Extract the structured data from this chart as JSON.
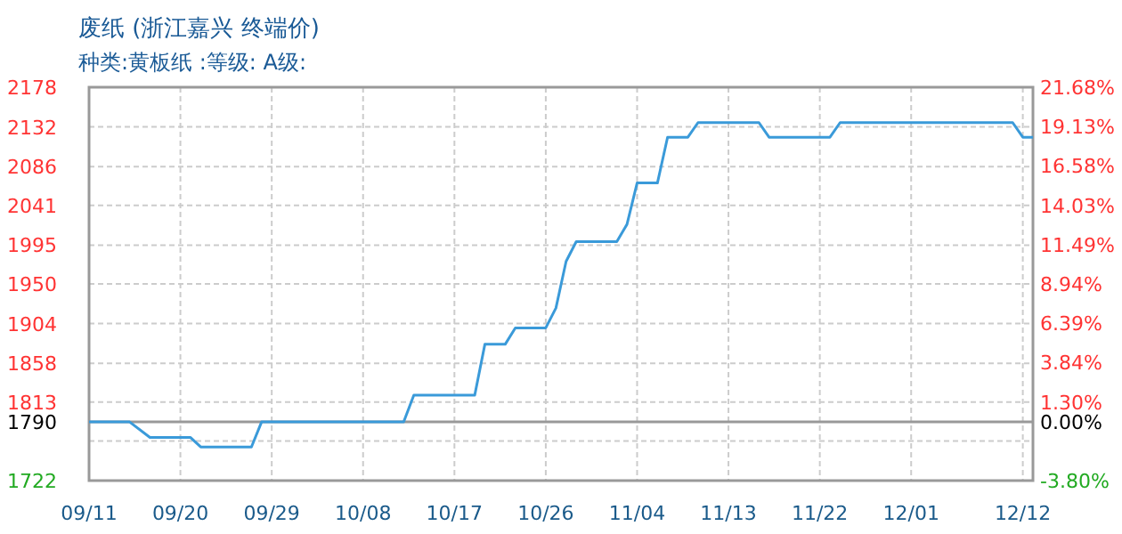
{
  "chart_data": {
    "type": "line",
    "title": "废纸 (浙江嘉兴 终端价)",
    "subtitle": "种类:黄板纸 :等级: A级:",
    "color": "#3a9ad9",
    "grid": true,
    "x": [
      "--09-11",
      "--09-15",
      "--09-17",
      "--09-21",
      "--09-22",
      "--09-27",
      "--09-28",
      "--10-12",
      "--10-13",
      "--10-19",
      "--10-20",
      "--10-22",
      "--10-23",
      "--10-26",
      "--10-27",
      "--10-28",
      "--10-29",
      "--11-02",
      "--11-03",
      "--11-04",
      "--11-06",
      "--11-07",
      "--11-09",
      "--11-10",
      "--11-16",
      "--11-17",
      "--11-23",
      "--11-24",
      "--12-11",
      "--12-12",
      "--12-13"
    ],
    "values": [
      1790,
      1790,
      1772,
      1772,
      1761,
      1761,
      1790,
      1790,
      1821,
      1821,
      1880,
      1880,
      1899,
      1899,
      1922,
      1976,
      1999,
      1999,
      2019,
      2067,
      2067,
      2120,
      2120,
      2137,
      2137,
      2120,
      2120,
      2137,
      2137,
      2120,
      2120
    ],
    "xlim": [
      "--09-11",
      "--12-13"
    ],
    "xticks": [
      {
        "value": "--09-11",
        "label": "09/11"
      },
      {
        "value": "--09-20",
        "label": "09/20"
      },
      {
        "value": "--09-29",
        "label": "09/29"
      },
      {
        "value": "--10-08",
        "label": "10/08"
      },
      {
        "value": "--10-17",
        "label": "10/17"
      },
      {
        "value": "--10-26",
        "label": "10/26"
      },
      {
        "value": "--11-04",
        "label": "11/04"
      },
      {
        "value": "--11-13",
        "label": "11/13"
      },
      {
        "value": "--11-22",
        "label": "11/22"
      },
      {
        "value": "--12-01",
        "label": "12/01"
      },
      {
        "value": "--12-12",
        "label": "12/12"
      }
    ],
    "ylim": [
      1722,
      2178
    ],
    "yticks": [
      1722,
      {
        "value": 1768,
        "label": null
      },
      1790,
      1813,
      1858,
      1904,
      1950,
      1995,
      2041,
      2086,
      2132,
      2178
    ],
    "y2lim": [
      -3.8,
      21.68
    ],
    "y2ticks": [
      {
        "value": -3.8,
        "label": "-3.80%"
      },
      {
        "value": 0.0,
        "label": "0.00%"
      },
      {
        "value": 1.3,
        "label": "1.30%"
      },
      {
        "value": 3.84,
        "label": "3.84%"
      },
      {
        "value": 6.39,
        "label": "6.39%"
      },
      {
        "value": 8.94,
        "label": "8.94%"
      },
      {
        "value": 11.49,
        "label": "11.49%"
      },
      {
        "value": 14.03,
        "label": "14.03%"
      },
      {
        "value": 16.58,
        "label": "16.58%"
      },
      {
        "value": 19.13,
        "label": "19.13%"
      },
      {
        "value": 21.68,
        "label": "21.68%"
      }
    ],
    "ref_lines": [
      {
        "axis": "y",
        "value": 1790,
        "label": null,
        "color": "#999999"
      }
    ]
  }
}
